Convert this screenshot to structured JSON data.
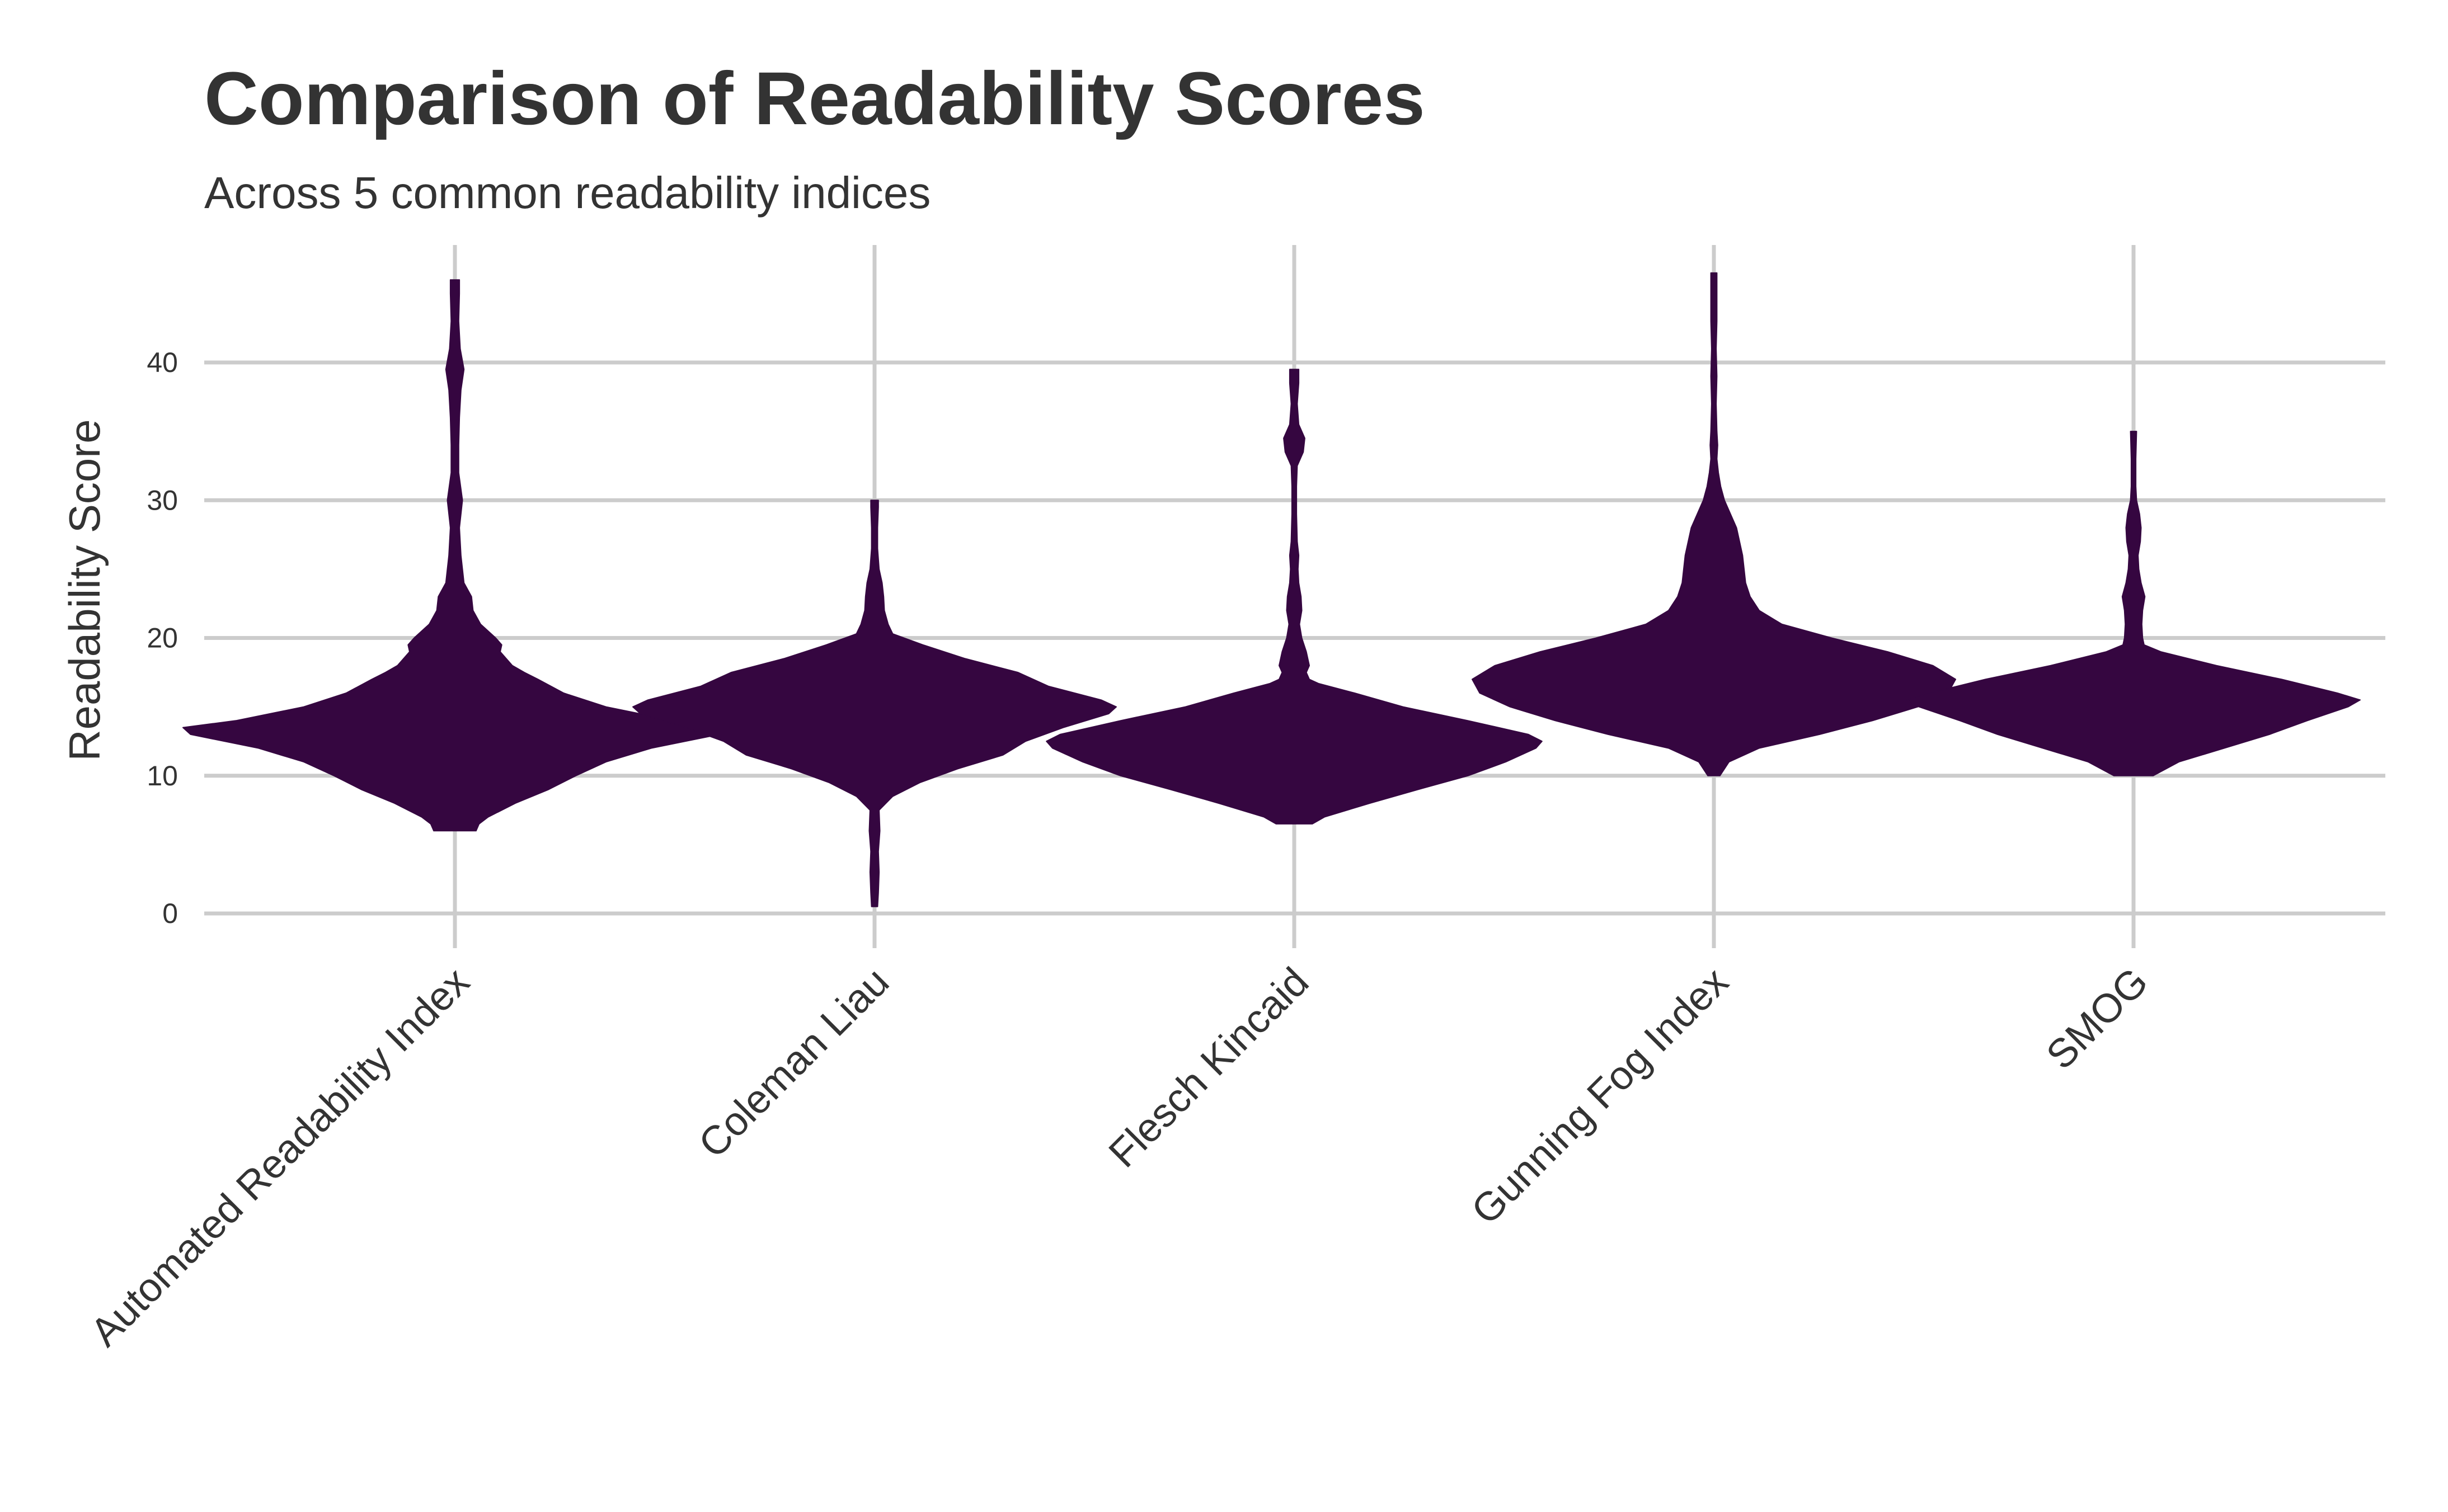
{
  "chart_data": {
    "type": "violin",
    "title": "Comparison of Readability Scores",
    "subtitle": "Across 5 common readability indices",
    "xlabel": "",
    "ylabel": "Readability Score",
    "ylim": [
      -1,
      48
    ],
    "yticks": [
      0,
      10,
      20,
      30,
      40
    ],
    "grid": true,
    "legend": "none",
    "fill_color": "#350640",
    "grid_color": "#cccccc",
    "categories": [
      "Automated Readability Index",
      "Coleman Liau",
      "Flesch Kincaid",
      "Gunning Fog Index",
      "SMOG"
    ],
    "series": [
      {
        "category": "Automated Readability Index",
        "min": 6,
        "max": 46,
        "density": [
          [
            6,
            0.14
          ],
          [
            6.5,
            0.16
          ],
          [
            7,
            0.22
          ],
          [
            8,
            0.4
          ],
          [
            9,
            0.62
          ],
          [
            10,
            0.8
          ],
          [
            11,
            1.0
          ],
          [
            12,
            1.3
          ],
          [
            13,
            1.75
          ],
          [
            13.5,
            1.8
          ],
          [
            14,
            1.45
          ],
          [
            15,
            1.0
          ],
          [
            16,
            0.72
          ],
          [
            17,
            0.55
          ],
          [
            17.5,
            0.46
          ],
          [
            18,
            0.38
          ],
          [
            19,
            0.3
          ],
          [
            19.5,
            0.31
          ],
          [
            20,
            0.27
          ],
          [
            21,
            0.17
          ],
          [
            22,
            0.12
          ],
          [
            23,
            0.11
          ],
          [
            24,
            0.06
          ],
          [
            25,
            0.05
          ],
          [
            26,
            0.04
          ],
          [
            28,
            0.03
          ],
          [
            30,
            0.05
          ],
          [
            32,
            0.025
          ],
          [
            34,
            0.025
          ],
          [
            36,
            0.03
          ],
          [
            38,
            0.04
          ],
          [
            39.5,
            0.06
          ],
          [
            41,
            0.035
          ],
          [
            43,
            0.025
          ],
          [
            45,
            0.03
          ],
          [
            46,
            0.03
          ]
        ]
      },
      {
        "category": "Coleman Liau",
        "min": 0.5,
        "max": 30,
        "density": [
          [
            0.5,
            0.02
          ],
          [
            1.5,
            0.025
          ],
          [
            3,
            0.03
          ],
          [
            4.5,
            0.025
          ],
          [
            6,
            0.035
          ],
          [
            7.5,
            0.03
          ],
          [
            8.5,
            0.12
          ],
          [
            9.5,
            0.3
          ],
          [
            10.5,
            0.55
          ],
          [
            11.5,
            0.85
          ],
          [
            12.5,
            1.0
          ],
          [
            13.5,
            1.25
          ],
          [
            14.5,
            1.55
          ],
          [
            15,
            1.6
          ],
          [
            15.5,
            1.5
          ],
          [
            16.5,
            1.15
          ],
          [
            17.5,
            0.95
          ],
          [
            18.5,
            0.6
          ],
          [
            19.5,
            0.32
          ],
          [
            20.3,
            0.12
          ],
          [
            21,
            0.09
          ],
          [
            22,
            0.065
          ],
          [
            23,
            0.06
          ],
          [
            24,
            0.05
          ],
          [
            25,
            0.03
          ],
          [
            26.5,
            0.02
          ],
          [
            28,
            0.02
          ],
          [
            29.5,
            0.025
          ],
          [
            30,
            0.025
          ]
        ]
      },
      {
        "category": "Flesch Kincaid",
        "min": 6.5,
        "max": 39.5,
        "density": [
          [
            6.5,
            0.12
          ],
          [
            7,
            0.2
          ],
          [
            8,
            0.5
          ],
          [
            9,
            0.82
          ],
          [
            10,
            1.15
          ],
          [
            11,
            1.4
          ],
          [
            12,
            1.6
          ],
          [
            12.5,
            1.64
          ],
          [
            13,
            1.55
          ],
          [
            14,
            1.15
          ],
          [
            15,
            0.72
          ],
          [
            16,
            0.4
          ],
          [
            16.7,
            0.16
          ],
          [
            17,
            0.1
          ],
          [
            17.5,
            0.08
          ],
          [
            18,
            0.1
          ],
          [
            19,
            0.08
          ],
          [
            20,
            0.05
          ],
          [
            21,
            0.035
          ],
          [
            22,
            0.05
          ],
          [
            23,
            0.045
          ],
          [
            24,
            0.03
          ],
          [
            25,
            0.025
          ],
          [
            26,
            0.03
          ],
          [
            27,
            0.02
          ],
          [
            29,
            0.015
          ],
          [
            31,
            0.015
          ],
          [
            32.5,
            0.02
          ],
          [
            33.5,
            0.06
          ],
          [
            34.5,
            0.07
          ],
          [
            35.5,
            0.03
          ],
          [
            37,
            0.02
          ],
          [
            38.5,
            0.03
          ],
          [
            39.5,
            0.03
          ]
        ]
      },
      {
        "category": "Gunning Fog Index",
        "min": 10,
        "max": 46.5,
        "density": [
          [
            10,
            0.04
          ],
          [
            11,
            0.1
          ],
          [
            12,
            0.3
          ],
          [
            13,
            0.7
          ],
          [
            14,
            1.05
          ],
          [
            15,
            1.35
          ],
          [
            16,
            1.55
          ],
          [
            17,
            1.6
          ],
          [
            18,
            1.45
          ],
          [
            19,
            1.15
          ],
          [
            20,
            0.78
          ],
          [
            21,
            0.45
          ],
          [
            22,
            0.3
          ],
          [
            23,
            0.24
          ],
          [
            24,
            0.21
          ],
          [
            25,
            0.2
          ],
          [
            26,
            0.19
          ],
          [
            27,
            0.17
          ],
          [
            28,
            0.15
          ],
          [
            29,
            0.11
          ],
          [
            30,
            0.07
          ],
          [
            31,
            0.045
          ],
          [
            32,
            0.03
          ],
          [
            33,
            0.02
          ],
          [
            34,
            0.025
          ],
          [
            35,
            0.02
          ],
          [
            37,
            0.015
          ],
          [
            39,
            0.02
          ],
          [
            41,
            0.015
          ],
          [
            43,
            0.02
          ],
          [
            45,
            0.02
          ],
          [
            46.5,
            0.02
          ]
        ]
      },
      {
        "category": "SMOG",
        "min": 10,
        "max": 35,
        "density": [
          [
            10,
            0.13
          ],
          [
            11,
            0.3
          ],
          [
            12,
            0.6
          ],
          [
            13,
            0.9
          ],
          [
            14,
            1.15
          ],
          [
            15,
            1.42
          ],
          [
            15.5,
            1.5
          ],
          [
            16,
            1.35
          ],
          [
            17,
            0.98
          ],
          [
            18,
            0.55
          ],
          [
            19,
            0.18
          ],
          [
            19.5,
            0.07
          ],
          [
            20,
            0.06
          ],
          [
            21,
            0.055
          ],
          [
            22,
            0.06
          ],
          [
            23,
            0.075
          ],
          [
            24,
            0.05
          ],
          [
            25,
            0.035
          ],
          [
            26,
            0.03
          ],
          [
            27,
            0.045
          ],
          [
            28,
            0.05
          ],
          [
            29,
            0.04
          ],
          [
            30,
            0.02
          ],
          [
            31,
            0.015
          ],
          [
            33,
            0.015
          ],
          [
            35,
            0.02
          ]
        ]
      }
    ]
  }
}
